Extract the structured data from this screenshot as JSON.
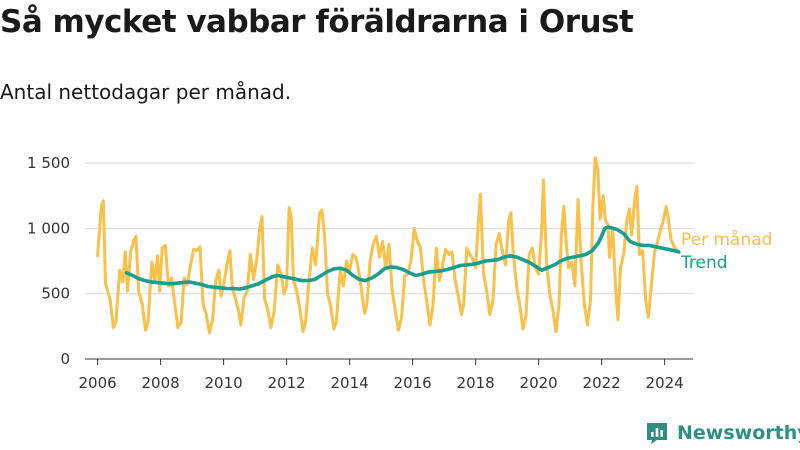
{
  "header": {
    "title": "Så mycket vabbar föräldrarna i Orust",
    "subtitle": "Antal nettodagar per månad."
  },
  "brand": {
    "name": "Newsworthy",
    "logo_icon": "newsworthy-logo-icon",
    "color": "#2f8f86"
  },
  "chart_data": {
    "type": "line",
    "title": "Så mycket vabbar föräldrarna i Orust",
    "subtitle": "Antal nettodagar per månad.",
    "xlabel": "",
    "ylabel": "",
    "xlim": [
      2005.6,
      2024.9
    ],
    "ylim": [
      0,
      1600
    ],
    "x_ticks": [
      2006,
      2008,
      2010,
      2012,
      2014,
      2016,
      2018,
      2020,
      2022,
      2024
    ],
    "x_tick_labels": [
      "2006",
      "2008",
      "2010",
      "2012",
      "2014",
      "2016",
      "2018",
      "2020",
      "2022",
      "2024"
    ],
    "y_ticks": [
      0,
      500,
      1000,
      1500
    ],
    "y_tick_labels": [
      "0",
      "500",
      "1 000",
      "1 500"
    ],
    "grid": "horizontal",
    "legend_placement": "right, at end of lines",
    "x_unit": "year (fractional)",
    "series": [
      {
        "name": "Per månad",
        "color": "#f9c04a",
        "points": [
          [
            2006.0,
            790
          ],
          [
            2006.12,
            1180
          ],
          [
            2006.18,
            1210
          ],
          [
            2006.25,
            580
          ],
          [
            2006.4,
            450
          ],
          [
            2006.5,
            240
          ],
          [
            2006.58,
            280
          ],
          [
            2006.7,
            680
          ],
          [
            2006.8,
            590
          ],
          [
            2006.88,
            820
          ],
          [
            2006.95,
            520
          ],
          [
            2007.05,
            820
          ],
          [
            2007.15,
            910
          ],
          [
            2007.22,
            940
          ],
          [
            2007.3,
            520
          ],
          [
            2007.42,
            420
          ],
          [
            2007.52,
            220
          ],
          [
            2007.6,
            280
          ],
          [
            2007.72,
            740
          ],
          [
            2007.82,
            600
          ],
          [
            2007.9,
            790
          ],
          [
            2007.97,
            520
          ],
          [
            2008.05,
            850
          ],
          [
            2008.15,
            870
          ],
          [
            2008.25,
            560
          ],
          [
            2008.35,
            620
          ],
          [
            2008.45,
            420
          ],
          [
            2008.55,
            240
          ],
          [
            2008.65,
            280
          ],
          [
            2008.75,
            620
          ],
          [
            2008.85,
            570
          ],
          [
            2008.95,
            720
          ],
          [
            2009.05,
            840
          ],
          [
            2009.15,
            830
          ],
          [
            2009.25,
            860
          ],
          [
            2009.35,
            420
          ],
          [
            2009.45,
            340
          ],
          [
            2009.55,
            200
          ],
          [
            2009.65,
            300
          ],
          [
            2009.75,
            600
          ],
          [
            2009.85,
            680
          ],
          [
            2009.92,
            480
          ],
          [
            2010.0,
            560
          ],
          [
            2010.1,
            720
          ],
          [
            2010.2,
            830
          ],
          [
            2010.28,
            540
          ],
          [
            2010.38,
            460
          ],
          [
            2010.47,
            370
          ],
          [
            2010.55,
            260
          ],
          [
            2010.65,
            470
          ],
          [
            2010.75,
            520
          ],
          [
            2010.85,
            800
          ],
          [
            2010.95,
            610
          ],
          [
            2011.05,
            760
          ],
          [
            2011.15,
            1010
          ],
          [
            2011.22,
            1090
          ],
          [
            2011.3,
            460
          ],
          [
            2011.4,
            380
          ],
          [
            2011.5,
            240
          ],
          [
            2011.6,
            360
          ],
          [
            2011.72,
            720
          ],
          [
            2011.82,
            660
          ],
          [
            2011.92,
            500
          ],
          [
            2012.0,
            560
          ],
          [
            2012.08,
            1160
          ],
          [
            2012.15,
            1080
          ],
          [
            2012.22,
            600
          ],
          [
            2012.3,
            540
          ],
          [
            2012.42,
            390
          ],
          [
            2012.52,
            210
          ],
          [
            2012.6,
            280
          ],
          [
            2012.72,
            620
          ],
          [
            2012.82,
            850
          ],
          [
            2012.92,
            720
          ],
          [
            2013.05,
            1120
          ],
          [
            2013.12,
            1140
          ],
          [
            2013.2,
            960
          ],
          [
            2013.3,
            500
          ],
          [
            2013.4,
            400
          ],
          [
            2013.5,
            230
          ],
          [
            2013.58,
            290
          ],
          [
            2013.7,
            680
          ],
          [
            2013.8,
            560
          ],
          [
            2013.9,
            750
          ],
          [
            2014.0,
            680
          ],
          [
            2014.1,
            800
          ],
          [
            2014.2,
            780
          ],
          [
            2014.3,
            660
          ],
          [
            2014.38,
            520
          ],
          [
            2014.48,
            350
          ],
          [
            2014.55,
            420
          ],
          [
            2014.65,
            750
          ],
          [
            2014.75,
            880
          ],
          [
            2014.85,
            940
          ],
          [
            2014.95,
            780
          ],
          [
            2015.05,
            900
          ],
          [
            2015.15,
            700
          ],
          [
            2015.25,
            880
          ],
          [
            2015.35,
            520
          ],
          [
            2015.45,
            370
          ],
          [
            2015.55,
            220
          ],
          [
            2015.65,
            320
          ],
          [
            2015.75,
            640
          ],
          [
            2015.85,
            650
          ],
          [
            2015.95,
            760
          ],
          [
            2016.05,
            1000
          ],
          [
            2016.15,
            900
          ],
          [
            2016.25,
            850
          ],
          [
            2016.35,
            600
          ],
          [
            2016.45,
            440
          ],
          [
            2016.55,
            260
          ],
          [
            2016.65,
            420
          ],
          [
            2016.75,
            850
          ],
          [
            2016.85,
            600
          ],
          [
            2016.95,
            720
          ],
          [
            2017.05,
            840
          ],
          [
            2017.15,
            800
          ],
          [
            2017.25,
            820
          ],
          [
            2017.35,
            600
          ],
          [
            2017.45,
            480
          ],
          [
            2017.55,
            340
          ],
          [
            2017.62,
            420
          ],
          [
            2017.72,
            850
          ],
          [
            2017.82,
            800
          ],
          [
            2017.92,
            760
          ],
          [
            2018.0,
            700
          ],
          [
            2018.08,
            1030
          ],
          [
            2018.15,
            1260
          ],
          [
            2018.25,
            660
          ],
          [
            2018.35,
            520
          ],
          [
            2018.45,
            340
          ],
          [
            2018.55,
            450
          ],
          [
            2018.65,
            880
          ],
          [
            2018.75,
            960
          ],
          [
            2018.85,
            820
          ],
          [
            2018.95,
            720
          ],
          [
            2019.05,
            1060
          ],
          [
            2019.12,
            1120
          ],
          [
            2019.2,
            800
          ],
          [
            2019.3,
            560
          ],
          [
            2019.4,
            420
          ],
          [
            2019.5,
            230
          ],
          [
            2019.6,
            330
          ],
          [
            2019.7,
            800
          ],
          [
            2019.8,
            850
          ],
          [
            2019.9,
            700
          ],
          [
            2020.0,
            650
          ],
          [
            2020.1,
            1000
          ],
          [
            2020.15,
            1370
          ],
          [
            2020.25,
            740
          ],
          [
            2020.35,
            500
          ],
          [
            2020.45,
            380
          ],
          [
            2020.55,
            210
          ],
          [
            2020.65,
            420
          ],
          [
            2020.72,
            950
          ],
          [
            2020.8,
            1170
          ],
          [
            2020.88,
            870
          ],
          [
            2020.95,
            700
          ],
          [
            2021.05,
            740
          ],
          [
            2021.15,
            560
          ],
          [
            2021.25,
            1220
          ],
          [
            2021.35,
            740
          ],
          [
            2021.45,
            420
          ],
          [
            2021.55,
            260
          ],
          [
            2021.65,
            460
          ],
          [
            2021.72,
            1160
          ],
          [
            2021.8,
            1540
          ],
          [
            2021.88,
            1450
          ],
          [
            2021.95,
            1070
          ],
          [
            2022.05,
            1250
          ],
          [
            2022.12,
            1060
          ],
          [
            2022.2,
            1030
          ],
          [
            2022.25,
            780
          ],
          [
            2022.35,
            1000
          ],
          [
            2022.45,
            520
          ],
          [
            2022.52,
            300
          ],
          [
            2022.6,
            700
          ],
          [
            2022.7,
            800
          ],
          [
            2022.8,
            1060
          ],
          [
            2022.88,
            1150
          ],
          [
            2022.95,
            950
          ],
          [
            2023.05,
            1220
          ],
          [
            2023.12,
            1320
          ],
          [
            2023.2,
            800
          ],
          [
            2023.3,
            830
          ],
          [
            2023.4,
            450
          ],
          [
            2023.48,
            320
          ],
          [
            2023.58,
            560
          ],
          [
            2023.68,
            820
          ],
          [
            2023.78,
            900
          ],
          [
            2023.88,
            1000
          ],
          [
            2023.95,
            1050
          ],
          [
            2024.05,
            1170
          ],
          [
            2024.12,
            1070
          ],
          [
            2024.2,
            920
          ],
          [
            2024.3,
            860
          ],
          [
            2024.4,
            830
          ]
        ]
      },
      {
        "name": "Trend",
        "color": "#1a9e8f",
        "points": [
          [
            2006.92,
            660
          ],
          [
            2007.1,
            640
          ],
          [
            2007.3,
            615
          ],
          [
            2007.5,
            600
          ],
          [
            2007.7,
            590
          ],
          [
            2007.9,
            585
          ],
          [
            2008.1,
            580
          ],
          [
            2008.3,
            575
          ],
          [
            2008.5,
            580
          ],
          [
            2008.7,
            585
          ],
          [
            2008.9,
            590
          ],
          [
            2009.1,
            580
          ],
          [
            2009.3,
            570
          ],
          [
            2009.5,
            555
          ],
          [
            2009.7,
            550
          ],
          [
            2009.9,
            545
          ],
          [
            2010.1,
            540
          ],
          [
            2010.3,
            540
          ],
          [
            2010.5,
            535
          ],
          [
            2010.7,
            545
          ],
          [
            2010.9,
            560
          ],
          [
            2011.1,
            575
          ],
          [
            2011.3,
            600
          ],
          [
            2011.5,
            625
          ],
          [
            2011.7,
            640
          ],
          [
            2011.9,
            630
          ],
          [
            2012.1,
            620
          ],
          [
            2012.3,
            610
          ],
          [
            2012.5,
            600
          ],
          [
            2012.7,
            600
          ],
          [
            2012.9,
            610
          ],
          [
            2013.1,
            640
          ],
          [
            2013.3,
            670
          ],
          [
            2013.5,
            690
          ],
          [
            2013.7,
            695
          ],
          [
            2013.9,
            680
          ],
          [
            2014.1,
            640
          ],
          [
            2014.3,
            610
          ],
          [
            2014.5,
            600
          ],
          [
            2014.7,
            620
          ],
          [
            2014.9,
            650
          ],
          [
            2015.1,
            690
          ],
          [
            2015.3,
            705
          ],
          [
            2015.5,
            700
          ],
          [
            2015.7,
            685
          ],
          [
            2015.9,
            660
          ],
          [
            2016.1,
            640
          ],
          [
            2016.3,
            650
          ],
          [
            2016.5,
            665
          ],
          [
            2016.7,
            670
          ],
          [
            2016.9,
            675
          ],
          [
            2017.1,
            685
          ],
          [
            2017.3,
            700
          ],
          [
            2017.5,
            715
          ],
          [
            2017.7,
            720
          ],
          [
            2017.9,
            725
          ],
          [
            2018.1,
            735
          ],
          [
            2018.3,
            750
          ],
          [
            2018.5,
            755
          ],
          [
            2018.7,
            760
          ],
          [
            2018.9,
            780
          ],
          [
            2019.1,
            790
          ],
          [
            2019.3,
            780
          ],
          [
            2019.5,
            760
          ],
          [
            2019.7,
            740
          ],
          [
            2019.9,
            710
          ],
          [
            2020.1,
            680
          ],
          [
            2020.3,
            700
          ],
          [
            2020.5,
            720
          ],
          [
            2020.7,
            750
          ],
          [
            2020.9,
            770
          ],
          [
            2021.1,
            780
          ],
          [
            2021.3,
            790
          ],
          [
            2021.5,
            800
          ],
          [
            2021.7,
            830
          ],
          [
            2021.9,
            890
          ],
          [
            2022.0,
            940
          ],
          [
            2022.1,
            1000
          ],
          [
            2022.2,
            1010
          ],
          [
            2022.3,
            1005
          ],
          [
            2022.5,
            990
          ],
          [
            2022.7,
            960
          ],
          [
            2022.9,
            900
          ],
          [
            2023.1,
            880
          ],
          [
            2023.3,
            870
          ],
          [
            2023.5,
            870
          ],
          [
            2023.7,
            860
          ],
          [
            2023.9,
            850
          ],
          [
            2024.1,
            840
          ],
          [
            2024.3,
            830
          ],
          [
            2024.45,
            820
          ]
        ]
      }
    ]
  }
}
